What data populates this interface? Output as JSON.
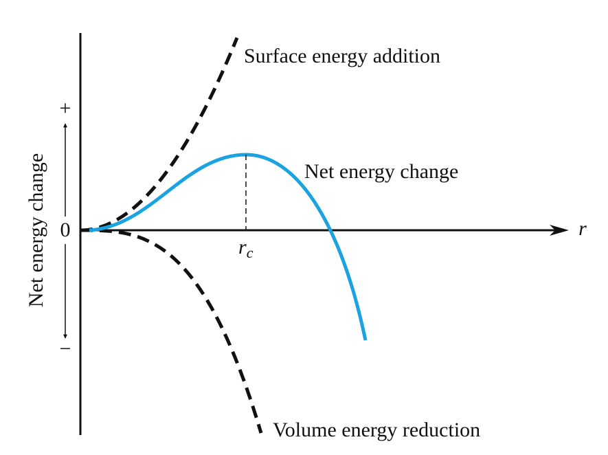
{
  "labels": {
    "surface": "Surface energy addition",
    "net": "Net energy change",
    "volume": "Volume energy reduction"
  },
  "axes": {
    "y_label": "Net energy change",
    "plus": "+",
    "zero": "0",
    "minus": "−",
    "x_label": "r",
    "critical_radius": {
      "base": "r",
      "subscript": "c"
    }
  }
}
